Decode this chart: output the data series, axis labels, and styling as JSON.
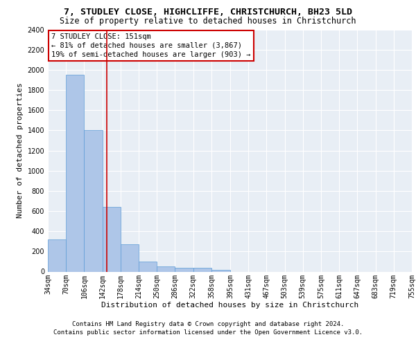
{
  "title": "7, STUDLEY CLOSE, HIGHCLIFFE, CHRISTCHURCH, BH23 5LD",
  "subtitle": "Size of property relative to detached houses in Christchurch",
  "xlabel": "Distribution of detached houses by size in Christchurch",
  "ylabel": "Number of detached properties",
  "bin_edges": [
    34,
    70,
    106,
    142,
    178,
    214,
    250,
    286,
    322,
    358,
    395,
    431,
    467,
    503,
    539,
    575,
    611,
    647,
    683,
    719,
    755
  ],
  "bar_heights": [
    320,
    1950,
    1400,
    640,
    270,
    100,
    50,
    40,
    35,
    20,
    0,
    0,
    0,
    0,
    0,
    0,
    0,
    0,
    0,
    0
  ],
  "bar_color": "#aec6e8",
  "bar_edge_color": "#5b9bd5",
  "red_line_x": 151,
  "annotation_text": "7 STUDLEY CLOSE: 151sqm\n← 81% of detached houses are smaller (3,867)\n19% of semi-detached houses are larger (903) →",
  "annotation_box_color": "#ffffff",
  "annotation_border_color": "#cc0000",
  "ylim": [
    0,
    2400
  ],
  "yticks": [
    0,
    200,
    400,
    600,
    800,
    1000,
    1200,
    1400,
    1600,
    1800,
    2000,
    2200,
    2400
  ],
  "background_color": "#e8eef5",
  "grid_color": "#ffffff",
  "footer_line1": "Contains HM Land Registry data © Crown copyright and database right 2024.",
  "footer_line2": "Contains public sector information licensed under the Open Government Licence v3.0.",
  "title_fontsize": 9.5,
  "subtitle_fontsize": 8.5,
  "axis_label_fontsize": 8,
  "tick_fontsize": 7,
  "annotation_fontsize": 7.5,
  "footer_fontsize": 6.5
}
